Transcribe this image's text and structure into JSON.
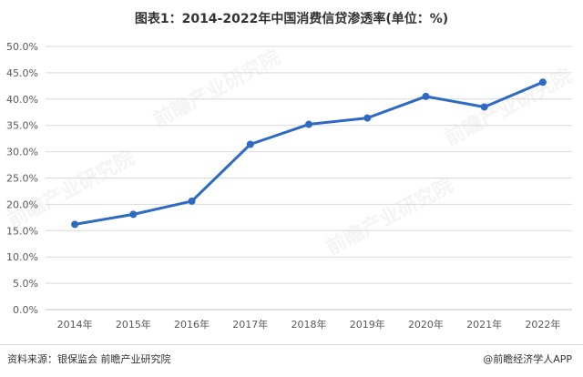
{
  "title": "图表1：2014-2022年中国消费信贷渗透率(单位：%)",
  "source": "资料来源：银保监会 前瞻产业研究院",
  "credit": "@前瞻经济学人APP",
  "watermark": "前瞻产业研究院",
  "chart_data": {
    "type": "line",
    "title": "图表1：2014-2022年中国消费信贷渗透率(单位：%)",
    "categories": [
      "2014年",
      "2015年",
      "2016年",
      "2017年",
      "2018年",
      "2019年",
      "2020年",
      "2021年",
      "2022年"
    ],
    "series": [
      {
        "values": [
          16.2,
          18.1,
          20.6,
          31.4,
          35.2,
          36.4,
          40.5,
          38.5,
          43.2
        ]
      }
    ],
    "ylim": [
      0,
      50
    ],
    "yticks": [
      0,
      5,
      10,
      15,
      20,
      25,
      30,
      35,
      40,
      45,
      50
    ],
    "ytick_format": "percent_1dp",
    "grid": true,
    "legend": "none",
    "line_color": "#2e6ac4"
  }
}
